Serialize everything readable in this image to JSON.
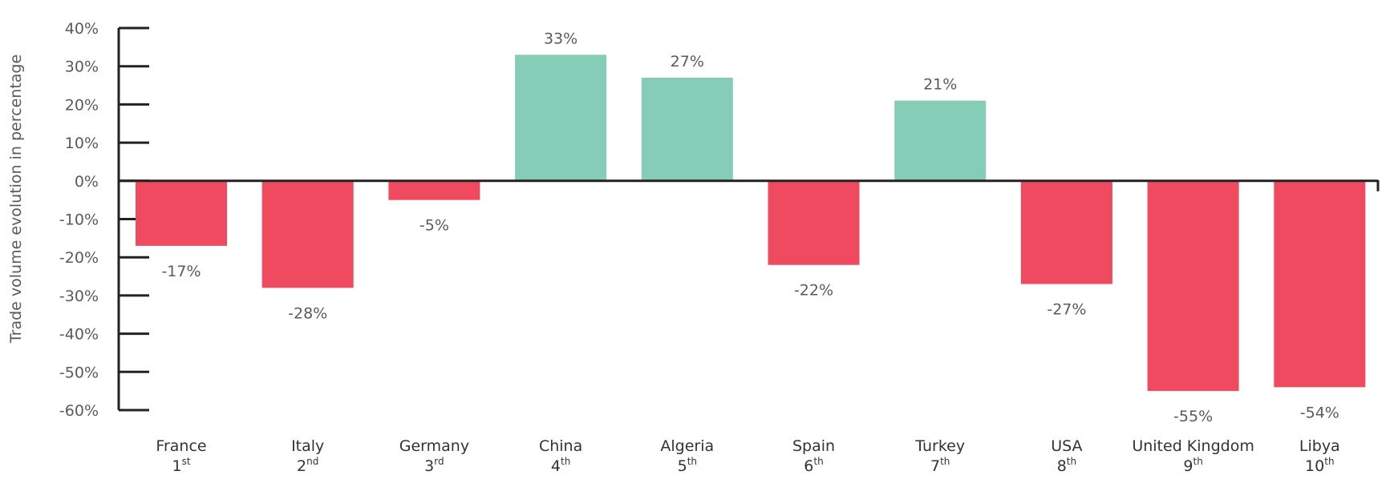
{
  "chart_data": {
    "type": "bar",
    "title": "",
    "xlabel": "",
    "ylabel": "Trade volume evolution in percentage",
    "ylim": [
      -60,
      40
    ],
    "yticks": [
      40,
      30,
      20,
      10,
      0,
      -10,
      -20,
      -30,
      -40,
      -50,
      -60
    ],
    "ytick_labels": [
      "40%",
      "30%",
      "20%",
      "10%",
      "0%",
      "-10%",
      "-20%",
      "-30%",
      "-40%",
      "-50%",
      "-60%"
    ],
    "categories": [
      "France",
      "Italy",
      "Germany",
      "China",
      "Algeria",
      "Spain",
      "Turkey",
      "USA",
      "United Kingdom",
      "Libya"
    ],
    "ranks": [
      {
        "num": "1",
        "suffix": "st"
      },
      {
        "num": "2",
        "suffix": "nd"
      },
      {
        "num": "3",
        "suffix": "rd"
      },
      {
        "num": "4",
        "suffix": "th"
      },
      {
        "num": "5",
        "suffix": "th"
      },
      {
        "num": "6",
        "suffix": "th"
      },
      {
        "num": "7",
        "suffix": "th"
      },
      {
        "num": "8",
        "suffix": "th"
      },
      {
        "num": "9",
        "suffix": "th"
      },
      {
        "num": "10",
        "suffix": "th"
      }
    ],
    "values": [
      -17,
      -28,
      -5,
      33,
      27,
      -22,
      21,
      -27,
      -55,
      -54
    ],
    "value_labels": [
      "-17%",
      "-28%",
      "-5%",
      "33%",
      "27%",
      "-22%",
      "21%",
      "-27%",
      "-55%",
      "-54%"
    ],
    "colors": {
      "positive": "#86cdb7",
      "negative": "#ef4a5f",
      "axis": "#222222"
    },
    "grid": false,
    "legend": "none"
  }
}
